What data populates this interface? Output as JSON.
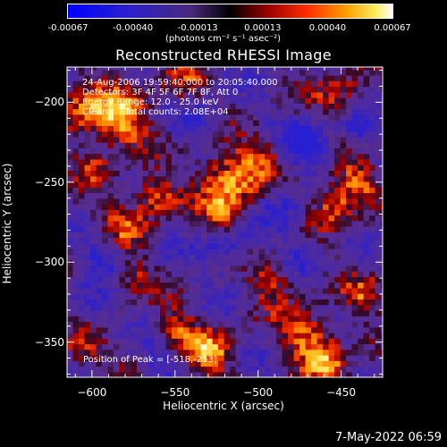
{
  "colorbar": {
    "ticks": [
      "-0.00067",
      "-0.00040",
      "-0.00013",
      "0.00013",
      "0.00040",
      "0.00067"
    ],
    "units": "(photons cm⁻² s⁻¹ asec⁻²)"
  },
  "info_lines": [
    "24-Aug-2006 19:59:40.000 to 20:05:40.000",
    "Detectors: 3F 4F 5F 6F 7F 8F, Att 0",
    "Energy Range: 12.0 - 25.0 keV",
    "Clean      Total counts: 2.08E+04"
  ],
  "peak_label": "Position of Peak = [-518,-253]",
  "footer": "7-May-2022 06:59",
  "chart_data": {
    "type": "heatmap",
    "title": "Reconstructed RHESSI Image",
    "xlabel": "Heliocentric X (arcsec)",
    "ylabel": "Heliocentric Y (arcsec)",
    "xlim": [
      -615,
      -425
    ],
    "ylim": [
      -372,
      -178
    ],
    "xticks": [
      -600,
      -550,
      -500,
      -450
    ],
    "xtick_labels": [
      "−600",
      "−550",
      "−500",
      "−450"
    ],
    "yticks": [
      -200,
      -250,
      -300,
      -350
    ],
    "ytick_labels": [
      "−200",
      "−250",
      "−300",
      "−350"
    ],
    "colorbar_range": [
      -0.00067,
      0.00067
    ],
    "peak": [
      -518,
      -253
    ],
    "sources": [
      {
        "x": -583,
        "y": -212,
        "amp": 1.0,
        "r": 12
      },
      {
        "x": -518,
        "y": -247,
        "amp": 1.0,
        "r": 13
      },
      {
        "x": -605,
        "y": -202,
        "amp": 0.75,
        "r": 12
      },
      {
        "x": -562,
        "y": -258,
        "amp": 0.85,
        "r": 9
      },
      {
        "x": -520,
        "y": -270,
        "amp": 0.7,
        "r": 9
      },
      {
        "x": -456,
        "y": -263,
        "amp": 0.85,
        "r": 10
      },
      {
        "x": -440,
        "y": -248,
        "amp": 0.7,
        "r": 9
      },
      {
        "x": -607,
        "y": -352,
        "amp": 0.7,
        "r": 10
      },
      {
        "x": -530,
        "y": -356,
        "amp": 0.85,
        "r": 11
      },
      {
        "x": -470,
        "y": -345,
        "amp": 0.8,
        "r": 11
      },
      {
        "x": -458,
        "y": -362,
        "amp": 0.75,
        "r": 10
      },
      {
        "x": -550,
        "y": -340,
        "amp": 0.65,
        "r": 8
      },
      {
        "x": -490,
        "y": -312,
        "amp": 0.7,
        "r": 10
      },
      {
        "x": -580,
        "y": -275,
        "amp": 0.6,
        "r": 10
      },
      {
        "x": -450,
        "y": -198,
        "amp": 0.6,
        "r": 12
      },
      {
        "x": -575,
        "y": -310,
        "amp": 0.55,
        "r": 8
      },
      {
        "x": -498,
        "y": -232,
        "amp": 0.55,
        "r": 8
      },
      {
        "x": -600,
        "y": -240,
        "amp": 0.55,
        "r": 8
      },
      {
        "x": -545,
        "y": -190,
        "amp": 0.55,
        "r": 10
      },
      {
        "x": -435,
        "y": -320,
        "amp": 0.6,
        "r": 9
      },
      {
        "x": -470,
        "y": -225,
        "amp": -0.8,
        "r": 10
      },
      {
        "x": -440,
        "y": -215,
        "amp": -0.7,
        "r": 8
      },
      {
        "x": -600,
        "y": -330,
        "amp": -0.6,
        "r": 9
      },
      {
        "x": -520,
        "y": -292,
        "amp": -0.55,
        "r": 10
      },
      {
        "x": -485,
        "y": -268,
        "amp": -0.6,
        "r": 9
      },
      {
        "x": -595,
        "y": -295,
        "amp": -0.5,
        "r": 8
      },
      {
        "x": -535,
        "y": -210,
        "amp": -0.5,
        "r": 10
      },
      {
        "x": -475,
        "y": -295,
        "amp": -0.5,
        "r": 8
      },
      {
        "x": -560,
        "y": -365,
        "amp": -0.45,
        "r": 8
      }
    ]
  }
}
